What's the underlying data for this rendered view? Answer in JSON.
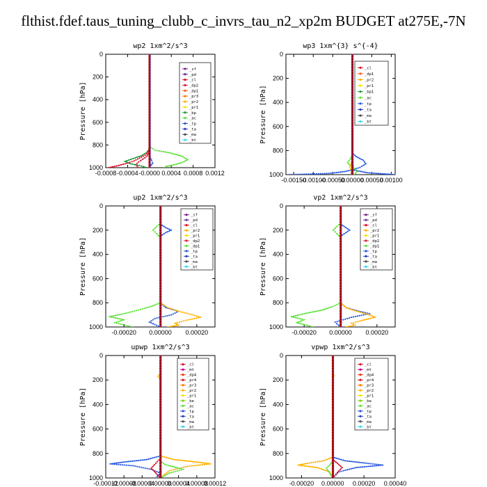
{
  "title": "flthist.fdef.taus_tuning_clubb_c_invrs_tau_n2_xp2m  BUDGET at275E,-7N",
  "colors": {
    "sf": "#7a1f8f",
    "pd": "#6a2a9a",
    "cl": "#e0102a",
    "dp2": "#d7243a",
    "dp1": "#ff5a1e",
    "pr2": "#ffb000",
    "pr1": "#f2e200",
    "bp": "#1e9b3a",
    "bp1": "#1e9b3a",
    "ac": "#5de03a",
    "tp": "#2b5bdc",
    "ta": "#2a3fc2",
    "ma": "#4b4b4b",
    "bt": "#35d7f0",
    "mt": "#c40080",
    "dp4": "#e23a00",
    "pr4": "#d01818",
    "pr3": "#ff7a00",
    "be": "#7ed000",
    "main": "#d01818"
  },
  "chart_data": [
    {
      "type": "line",
      "title": "wp2  1xm^2/s^3",
      "ylabel": "Pressure [hPa]",
      "xlim": [
        -0.0008,
        0.0012
      ],
      "ylim": [
        1000,
        0
      ],
      "xticks": [
        "-0.0008",
        "-0.0004",
        "-0.0000",
        "0.0004",
        "0.0008",
        "0.0012"
      ],
      "yticks": [
        "0",
        "200",
        "400",
        "600",
        "800",
        "1000"
      ],
      "legend": [
        "_sf",
        "_pd",
        "_cl",
        "_dp2",
        "_dp1",
        "_pr3",
        "_pr2",
        "_pr1",
        "_bp",
        "_ac",
        "_tp",
        "_ta",
        "_ma",
        "_bt"
      ],
      "legend_colors": [
        "sf",
        "pd",
        "cl",
        "dp2",
        "dp1",
        "pr3",
        "pr2",
        "pr1",
        "bp",
        "ac",
        "tp",
        "ta",
        "ma",
        "bt"
      ],
      "series": [
        {
          "key": "ac",
          "x": [
            0,
            0,
            2e-05,
            0.0001,
            0.00038,
            0.0006,
            0.0007,
            0.0006,
            0.00045,
            0.0003,
            0.00028
          ],
          "y": [
            50,
            780,
            820,
            845,
            870,
            900,
            930,
            955,
            975,
            990,
            1000
          ]
        },
        {
          "key": "bp",
          "x": [
            0,
            0,
            -1e-05,
            -6e-05,
            -0.00015,
            -0.0003,
            -0.00045,
            -0.00035,
            -0.00015,
            -5e-05
          ],
          "y": [
            50,
            800,
            840,
            870,
            895,
            920,
            945,
            965,
            985,
            1000
          ]
        },
        {
          "key": "cl",
          "x": [
            0,
            0,
            -2e-05,
            -8e-05,
            -0.00018,
            -0.00028,
            -0.0004,
            -0.0006,
            -0.00075
          ],
          "y": [
            50,
            820,
            860,
            890,
            915,
            940,
            960,
            985,
            1000
          ]
        },
        {
          "key": "dp2",
          "x": [
            0,
            0,
            -2e-05,
            -5e-05,
            -0.00012,
            -0.0002,
            -0.00025,
            -0.0002
          ],
          "y": [
            50,
            850,
            875,
            900,
            925,
            950,
            975,
            1000
          ]
        },
        {
          "key": "tp",
          "x": [
            0,
            0,
            1e-05,
            4e-05,
            6e-05,
            2e-05,
            0.0
          ],
          "y": [
            50,
            880,
            910,
            935,
            960,
            985,
            1000
          ]
        },
        {
          "key": "sf",
          "x": [
            0,
            0,
            5e-06,
            1e-05,
            0.0
          ],
          "y": [
            0,
            180,
            200,
            220,
            1000
          ]
        }
      ]
    },
    {
      "type": "line",
      "title": "wp3  1xm^{3} s^{-4}",
      "ylabel": "Pressure [hPa]",
      "xlim": [
        -0.0017,
        0.0011
      ],
      "ylim": [
        1000,
        0
      ],
      "xticks": [
        "-0.00150",
        "-0.00100",
        "-0.00050",
        "0.00000",
        "0.00050",
        "0.00100"
      ],
      "yticks": [
        "0",
        "200",
        "400",
        "600",
        "800",
        "1000"
      ],
      "legend": [
        "_cl",
        "_dp1",
        "_pr2",
        "_pr1",
        "_bp1",
        "_ac",
        "_tp",
        "_ta",
        "_ma",
        "_bt"
      ],
      "legend_colors": [
        "cl",
        "dp1",
        "pr2",
        "pr1",
        "bp1",
        "ac",
        "tp",
        "ta",
        "ma",
        "bt"
      ],
      "series": [
        {
          "key": "tp",
          "x": [
            0,
            0,
            0.0001,
            0.00028,
            0.00035,
            0.0002,
            0.0,
            -0.0002,
            -0.0006,
            -0.0016
          ],
          "y": [
            50,
            820,
            850,
            880,
            910,
            940,
            960,
            975,
            990,
            1000
          ]
        },
        {
          "key": "tp",
          "x": [
            0,
            0.0004,
            0.0011
          ],
          "y": [
            960,
            985,
            1000
          ]
        },
        {
          "key": "ac",
          "x": [
            0,
            0,
            -5e-05,
            -0.00012,
            -5e-05,
            6e-05,
            0.00012,
            5e-05
          ],
          "y": [
            50,
            840,
            870,
            900,
            925,
            950,
            975,
            1000
          ]
        },
        {
          "key": "pr2",
          "x": [
            0,
            0,
            -3e-05,
            -6e-05,
            -2e-05,
            2e-05
          ],
          "y": [
            50,
            880,
            910,
            940,
            970,
            1000
          ]
        },
        {
          "key": "cl",
          "x": [
            0,
            0,
            2e-05,
            0.0,
            -2e-05,
            0.0
          ],
          "y": [
            0,
            900,
            930,
            960,
            985,
            1000
          ]
        }
      ]
    },
    {
      "type": "line",
      "title": "up2  1xm^2/s^3",
      "ylabel": "Pressure [hPa]",
      "xlim": [
        -0.0003,
        0.0003
      ],
      "ylim": [
        1000,
        0
      ],
      "xticks": [
        "-0.00020",
        "0.00000",
        "0.00020"
      ],
      "yticks": [
        "0",
        "200",
        "400",
        "600",
        "800",
        "1000"
      ],
      "legend": [
        "_sf",
        "_pd",
        "_cl",
        "_pr2",
        "_pr1",
        "_dp2",
        "_dp1",
        "_tp",
        "_ta",
        "_ma",
        "_bt"
      ],
      "legend_colors": [
        "sf",
        "pd",
        "cl",
        "pr2",
        "pr1",
        "dp2",
        "ac",
        "tp",
        "ta",
        "ma",
        "bt"
      ],
      "series": [
        {
          "key": "ac",
          "x": [
            0,
            0,
            -2e-05,
            -4e-05,
            -2e-05,
            0,
            0,
            -5e-05,
            -0.00012,
            -0.0002,
            -0.00028,
            -0.0002,
            -0.00025,
            -0.00015
          ],
          "y": [
            0,
            140,
            170,
            200,
            230,
            260,
            800,
            830,
            860,
            890,
            915,
            940,
            965,
            1000
          ]
        },
        {
          "key": "tp",
          "x": [
            0,
            0,
            3e-05,
            6e-05,
            3e-05,
            0,
            0,
            3e-05,
            0.0001,
            6e-05,
            -3e-05,
            -6e-05,
            0
          ],
          "y": [
            0,
            150,
            180,
            200,
            220,
            250,
            800,
            840,
            870,
            900,
            930,
            960,
            1000
          ]
        },
        {
          "key": "pr2",
          "x": [
            0,
            0,
            4e-05,
            0.0001,
            0.00018,
            0.00022,
            0.00014,
            8e-05,
            0.0001,
            4e-05
          ],
          "y": [
            50,
            800,
            840,
            870,
            900,
            920,
            945,
            970,
            985,
            1000
          ]
        },
        {
          "key": "sf",
          "x": [
            0,
            0
          ],
          "y": [
            0,
            1000
          ]
        }
      ]
    },
    {
      "type": "line",
      "title": "vp2  1xm^2/s^3",
      "ylabel": "Pressure [hPa]",
      "xlim": [
        -0.0003,
        0.0003
      ],
      "ylim": [
        1000,
        0
      ],
      "xticks": [
        "-0.00020",
        "0.00000",
        "0.00020"
      ],
      "yticks": [
        "0",
        "200",
        "400",
        "600",
        "800",
        "1000"
      ],
      "legend": [
        "_sf",
        "_pd",
        "_cl",
        "_pr2",
        "_pr1",
        "_dp2",
        "_dp1",
        "_tp",
        "_ta",
        "_ma",
        "_bt"
      ],
      "legend_colors": [
        "sf",
        "pd",
        "cl",
        "pr2",
        "pr1",
        "dp2",
        "ac",
        "tp",
        "ta",
        "ma",
        "bt"
      ],
      "series": [
        {
          "key": "ac",
          "x": [
            0,
            0,
            -2e-05,
            -4e-05,
            -2e-05,
            0,
            0,
            -4e-05,
            -0.0001,
            -0.0002,
            -0.00027,
            -0.0002,
            -0.00024,
            -0.00015
          ],
          "y": [
            0,
            140,
            170,
            200,
            230,
            260,
            800,
            830,
            860,
            890,
            915,
            940,
            965,
            1000
          ]
        },
        {
          "key": "tp",
          "x": [
            0,
            0,
            3e-05,
            5e-05,
            3e-05,
            0,
            0,
            3e-05,
            0.0001,
            0.00016,
            6e-05,
            -3e-05,
            0
          ],
          "y": [
            0,
            150,
            180,
            200,
            220,
            250,
            800,
            840,
            870,
            890,
            920,
            960,
            1000
          ]
        },
        {
          "key": "pr2",
          "x": [
            0,
            0,
            3e-05,
            9e-05,
            0.00016,
            0.00019,
            0.00012,
            6e-05,
            8e-05,
            3e-05
          ],
          "y": [
            50,
            800,
            840,
            870,
            900,
            920,
            945,
            970,
            985,
            1000
          ]
        },
        {
          "key": "sf",
          "x": [
            0,
            0
          ],
          "y": [
            0,
            1000
          ]
        }
      ]
    },
    {
      "type": "line",
      "title": "upwp  1xm^2/s^3",
      "ylabel": "Pressure [hPa]",
      "xlim": [
        -0.00012,
        0.00012
      ],
      "ylim": [
        1000,
        0
      ],
      "xticks": [
        "-0.00012",
        "-0.00008",
        "-0.00004",
        "0.00000",
        "0.00004",
        "0.00008",
        "0.00012"
      ],
      "yticks": [
        "0",
        "200",
        "400",
        "600",
        "800",
        "1000"
      ],
      "legend": [
        "_cl",
        "_mt",
        "_dp4",
        "_pr4",
        "_pr3",
        "_pr2",
        "_pr1",
        "_be",
        "_ac",
        "_tp",
        "_ta",
        "_ma",
        "_bt"
      ],
      "legend_colors": [
        "cl",
        "mt",
        "dp4",
        "pr4",
        "pr3",
        "pr2",
        "pr1",
        "be",
        "ac",
        "tp",
        "ta",
        "ma",
        "bt"
      ],
      "series": [
        {
          "key": "tp",
          "x": [
            0,
            0,
            -3e-05,
            -8e-05,
            -0.00011,
            -6e-05,
            -2e-05,
            0,
            -1e-05
          ],
          "y": [
            50,
            820,
            850,
            870,
            885,
            900,
            930,
            960,
            1000
          ]
        },
        {
          "key": "pr2",
          "x": [
            0,
            0,
            3e-05,
            8e-05,
            0.00011,
            6e-05,
            2e-05,
            0
          ],
          "y": [
            50,
            820,
            850,
            870,
            885,
            905,
            940,
            1000
          ]
        },
        {
          "key": "ac",
          "x": [
            0,
            0,
            1e-05,
            3e-05,
            5e-05,
            2e-05,
            0
          ],
          "y": [
            50,
            860,
            890,
            910,
            930,
            960,
            1000
          ]
        },
        {
          "key": "cl",
          "x": [
            0,
            0,
            -1e-05,
            -2e-05,
            -1e-05,
            0
          ],
          "y": [
            50,
            840,
            880,
            920,
            960,
            1000
          ]
        },
        {
          "key": "pr2",
          "x": [
            0,
            0,
            -5e-06,
            0
          ],
          "y": [
            100,
            150,
            170,
            200
          ]
        },
        {
          "key": "sf",
          "x": [
            0,
            0
          ],
          "y": [
            0,
            1000
          ]
        }
      ]
    },
    {
      "type": "line",
      "title": "vpwp  1xm^2/s^3",
      "ylabel": "Pressure [hPa]",
      "xlim": [
        -0.0003,
        0.0004
      ],
      "ylim": [
        1000,
        0
      ],
      "xticks": [
        "-0.00020",
        "0.00000",
        "0.00020",
        "0.00040"
      ],
      "yticks": [
        "0",
        "200",
        "400",
        "600",
        "800",
        "1000"
      ],
      "legend": [
        "_cl",
        "_mt",
        "_dp4",
        "_pr4",
        "_pr3",
        "_pr2",
        "_pr1",
        "_be",
        "_ac",
        "_tp",
        "_ta",
        "_ma",
        "_bt"
      ],
      "legend_colors": [
        "cl",
        "mt",
        "dp4",
        "pr4",
        "pr3",
        "pr2",
        "pr1",
        "be",
        "ac",
        "tp",
        "ta",
        "ma",
        "bt"
      ],
      "series": [
        {
          "key": "tp",
          "x": [
            0,
            0,
            8e-05,
            0.00022,
            0.00032,
            0.00015,
            4e-05,
            0
          ],
          "y": [
            50,
            830,
            860,
            880,
            895,
            915,
            950,
            1000
          ]
        },
        {
          "key": "pr2",
          "x": [
            0,
            0,
            -6e-05,
            -0.00016,
            -0.00022,
            -0.0001,
            -2e-05,
            0
          ],
          "y": [
            50,
            830,
            860,
            880,
            895,
            915,
            950,
            1000
          ]
        },
        {
          "key": "ac",
          "x": [
            0,
            0,
            -2e-05,
            -4e-05,
            -2e-05,
            0
          ],
          "y": [
            50,
            860,
            895,
            920,
            960,
            1000
          ]
        },
        {
          "key": "cl",
          "x": [
            0,
            0,
            3e-05,
            6e-05,
            3e-05,
            0
          ],
          "y": [
            50,
            850,
            880,
            915,
            955,
            1000
          ]
        },
        {
          "key": "pr2",
          "x": [
            0,
            0,
            8e-06,
            0
          ],
          "y": [
            100,
            145,
            165,
            200
          ]
        },
        {
          "key": "sf",
          "x": [
            0,
            0
          ],
          "y": [
            0,
            1000
          ]
        }
      ]
    }
  ]
}
